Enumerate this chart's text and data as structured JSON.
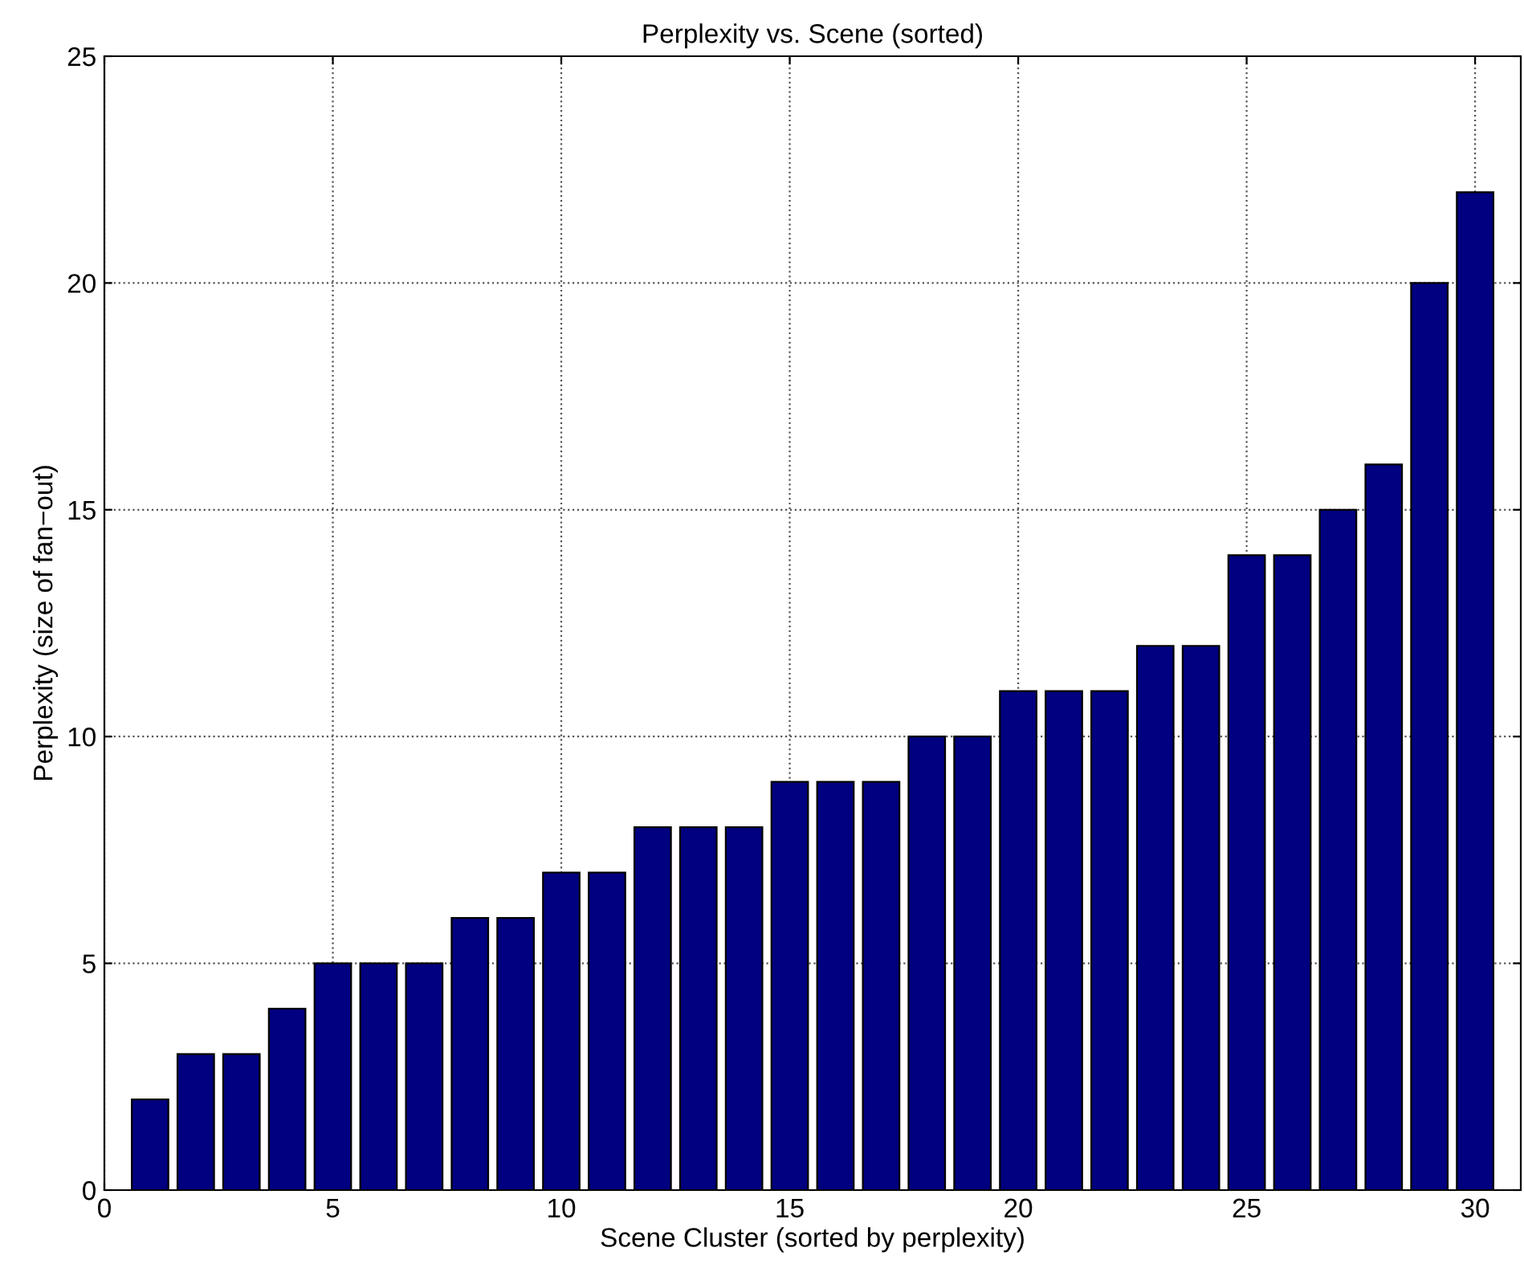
{
  "chart_data": {
    "type": "bar",
    "title": "Perplexity vs. Scene (sorted)",
    "xlabel": "Scene Cluster (sorted by perplexity)",
    "ylabel": "Perplexity (size of fan−out)",
    "x": [
      1,
      2,
      3,
      4,
      5,
      6,
      7,
      8,
      9,
      10,
      11,
      12,
      13,
      14,
      15,
      16,
      17,
      18,
      19,
      20,
      21,
      22,
      23,
      24,
      25,
      26,
      27,
      28,
      29,
      30
    ],
    "values": [
      2,
      3,
      3,
      4,
      5,
      5,
      5,
      6,
      6,
      7,
      7,
      8,
      8,
      8,
      9,
      9,
      9,
      10,
      10,
      11,
      11,
      11,
      12,
      12,
      14,
      14,
      15,
      16,
      20,
      22
    ],
    "color": "#000080",
    "xlim": [
      0,
      31
    ],
    "xticks": [
      0,
      5,
      10,
      15,
      20,
      25,
      30
    ],
    "ylim": [
      0,
      25
    ],
    "yticks": [
      0,
      5,
      10,
      15,
      20,
      25
    ],
    "grid": true
  }
}
